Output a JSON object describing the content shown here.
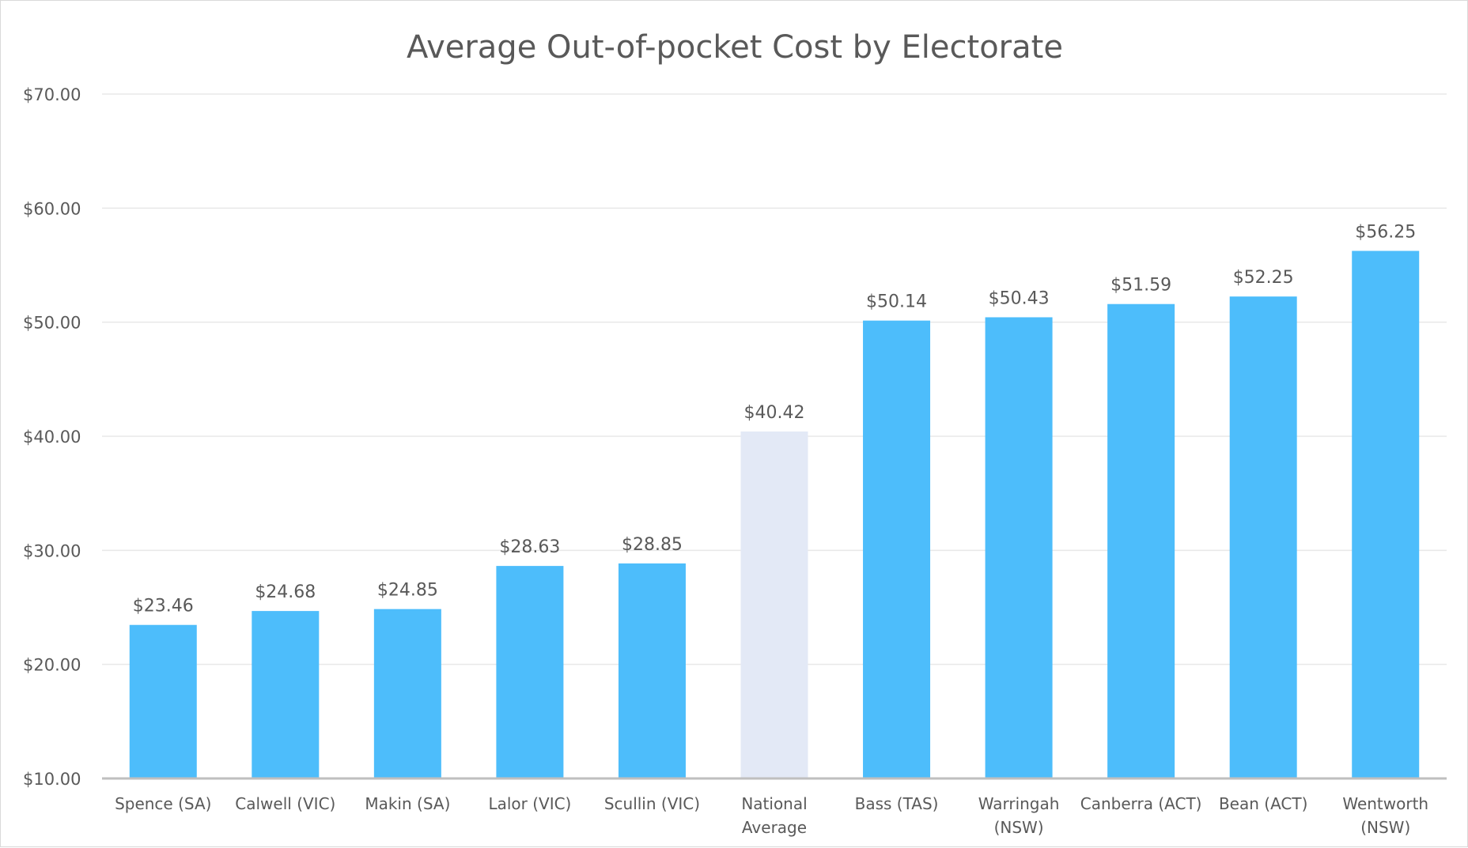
{
  "chart_data": {
    "type": "bar",
    "title": "Average Out-of-pocket Cost by Electorate",
    "xlabel": "",
    "ylabel": "",
    "ylim": [
      10,
      70
    ],
    "ytick_values": [
      10,
      20,
      30,
      40,
      50,
      60,
      70
    ],
    "ytick_labels": [
      "$10.00",
      "$20.00",
      "$30.00",
      "$40.00",
      "$50.00",
      "$60.00",
      "$70.00"
    ],
    "grid": true,
    "legend": "none",
    "categories": [
      [
        "Spence (SA)"
      ],
      [
        "Calwell (VIC)"
      ],
      [
        "Makin (SA)"
      ],
      [
        "Lalor (VIC)"
      ],
      [
        "Scullin (VIC)"
      ],
      [
        "National",
        "Average"
      ],
      [
        "Bass (TAS)"
      ],
      [
        "Warringah",
        "(NSW)"
      ],
      [
        "Canberra (ACT)"
      ],
      [
        "Bean (ACT)"
      ],
      [
        "Wentworth",
        "(NSW)"
      ]
    ],
    "values": [
      23.46,
      24.68,
      24.85,
      28.63,
      28.85,
      40.42,
      50.14,
      50.43,
      51.59,
      52.25,
      56.25
    ],
    "data_labels": [
      "$23.46",
      "$24.68",
      "$24.85",
      "$28.63",
      "$28.85",
      "$40.42",
      "$50.14",
      "$50.43",
      "$51.59",
      "$52.25",
      "$56.25"
    ],
    "highlight_index": 5,
    "colors": {
      "bar": "#4dbdfb",
      "highlight_bar": "#e3e9f6",
      "grid": "#e8e8e8",
      "axis": "#bfbfbf",
      "text": "#595959"
    }
  }
}
